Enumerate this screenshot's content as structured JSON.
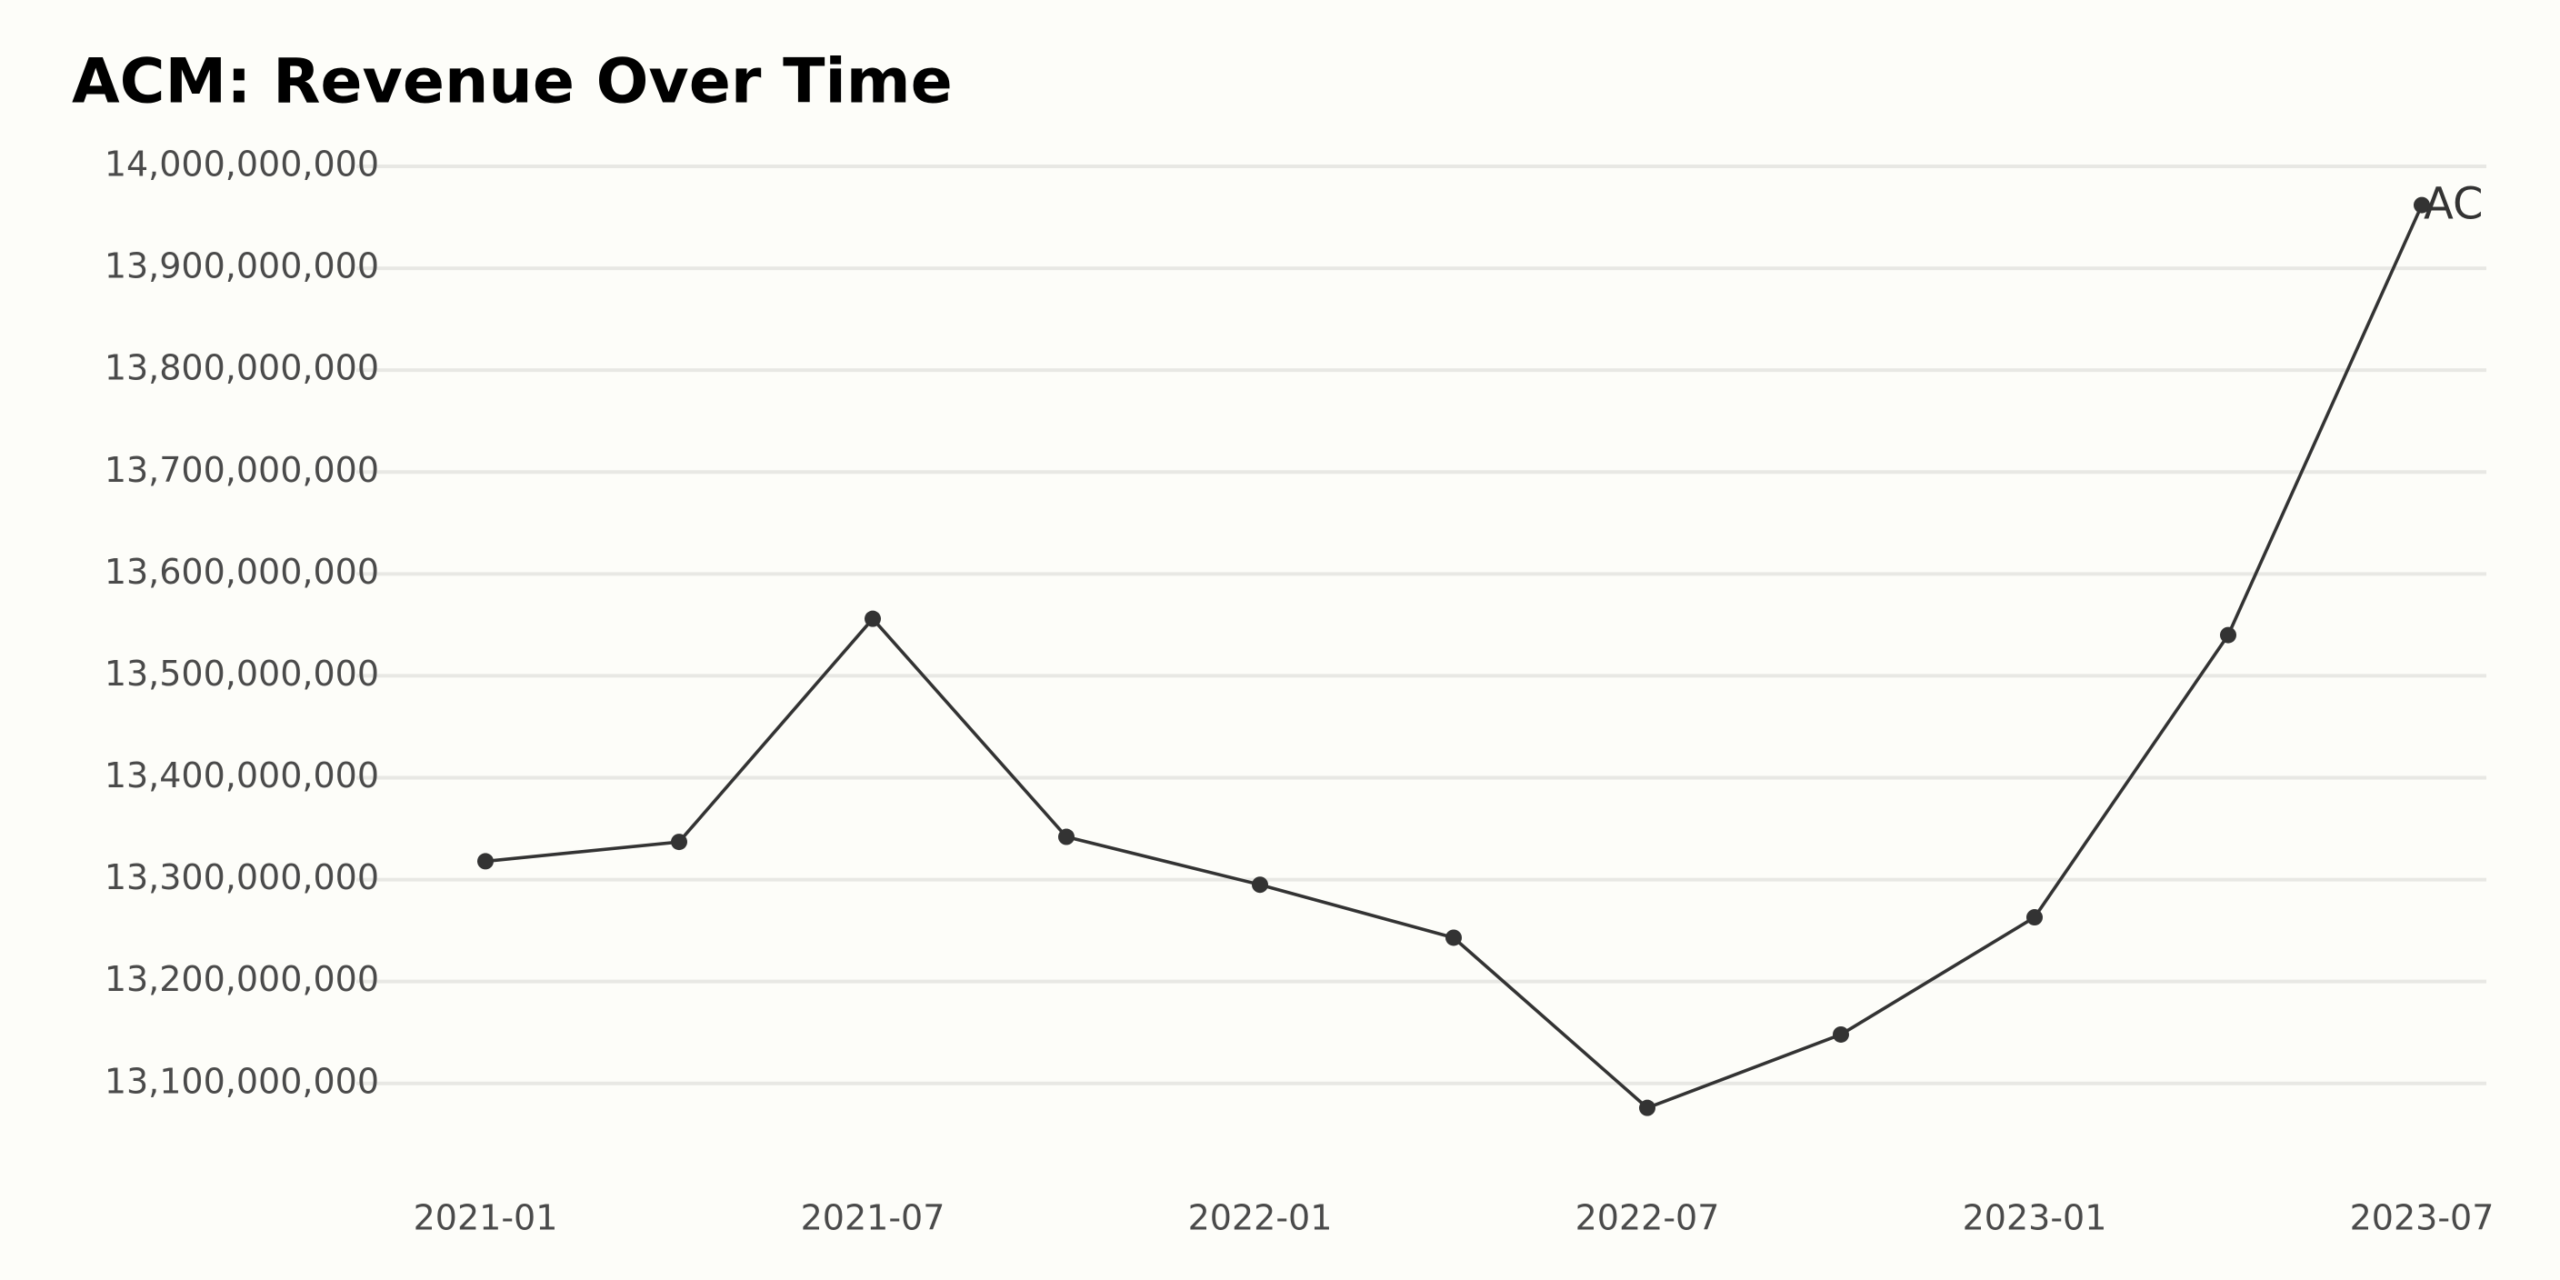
{
  "chart_data": {
    "type": "line",
    "title": "ACM: Revenue Over Time",
    "x": [
      "2021-01",
      "2021-04",
      "2021-07",
      "2021-10",
      "2022-01",
      "2022-04",
      "2022-07",
      "2022-10",
      "2023-01",
      "2023-04",
      "2023-07"
    ],
    "series": [
      {
        "name": "ACM",
        "color": "#333333",
        "values": [
          13318000000,
          13337000000,
          13556000000,
          13342000000,
          13295000000,
          13243000000,
          13076000000,
          13148000000,
          13263000000,
          13540000000,
          13962000000
        ]
      }
    ],
    "xlim": [
      "2020-11",
      "2023-08"
    ],
    "xticks": [
      "2021-01",
      "2021-07",
      "2022-01",
      "2022-07",
      "2023-01",
      "2023-07"
    ],
    "ylim": [
      13040000000,
      14000000000
    ],
    "yticks": [
      {
        "value": 13100000000,
        "label": "13,100,000,000"
      },
      {
        "value": 13200000000,
        "label": "13,200,000,000"
      },
      {
        "value": 13300000000,
        "label": "13,300,000,000"
      },
      {
        "value": 13400000000,
        "label": "13,400,000,000"
      },
      {
        "value": 13500000000,
        "label": "13,500,000,000"
      },
      {
        "value": 13600000000,
        "label": "13,600,000,000"
      },
      {
        "value": 13700000000,
        "label": "13,700,000,000"
      },
      {
        "value": 13800000000,
        "label": "13,800,000,000"
      },
      {
        "value": 13900000000,
        "label": "13,900,000,000"
      },
      {
        "value": 14000000000,
        "label": "14,000,000,000"
      }
    ],
    "grid": true
  }
}
